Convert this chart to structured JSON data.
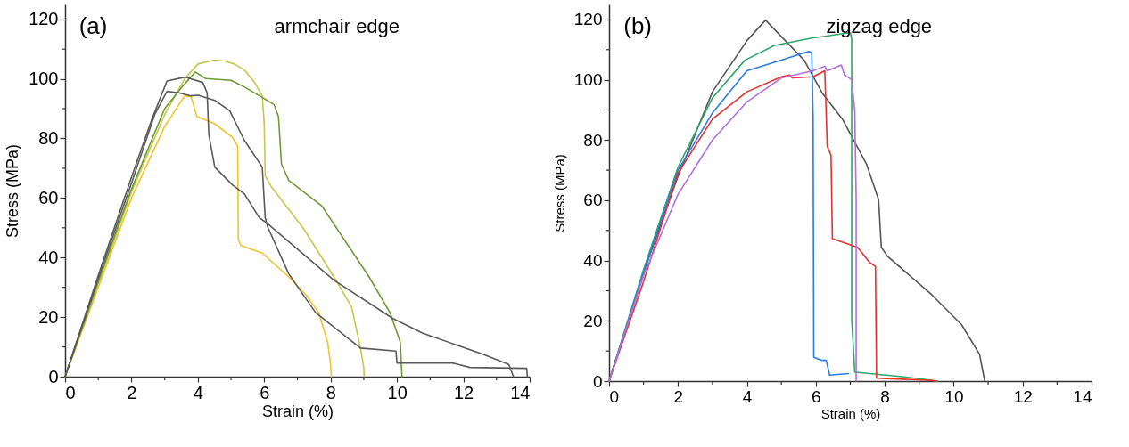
{
  "chart_data": [
    {
      "type": "line",
      "xlabel": "Strain (%)",
      "ylabel": "Stress (MPa)",
      "annotations": [
        "(a)",
        "armchair edge"
      ],
      "xlim": [
        0,
        14
      ],
      "ylim": [
        0,
        125
      ],
      "xticks": [
        0,
        {
          "value": 1,
          "label": null
        },
        2,
        {
          "value": 3,
          "label": null
        },
        4,
        {
          "value": 5,
          "label": null
        },
        6,
        {
          "value": 7,
          "label": null
        },
        8,
        {
          "value": 9,
          "label": null
        },
        10,
        {
          "value": 11,
          "label": null
        },
        12,
        {
          "value": 13,
          "label": null
        },
        14
      ],
      "yticks": [
        0,
        {
          "value": 10,
          "label": null
        },
        20,
        {
          "value": 30,
          "label": null
        },
        40,
        {
          "value": 50,
          "label": null
        },
        60,
        {
          "value": 70,
          "label": null
        },
        80,
        {
          "value": 90,
          "label": null
        },
        100,
        {
          "value": 110,
          "label": null
        },
        120
      ],
      "grid": false,
      "legend": false,
      "marker": "none",
      "line_style": "solid",
      "series": [
        {
          "color": "#f2c42a",
          "x": [
            0,
            1,
            2,
            3,
            3.6,
            3.8,
            3.97,
            4.5,
            5.04,
            5.2,
            5.22,
            5.3,
            5.94,
            6.74,
            7.3,
            7.64,
            7.91,
            8.0,
            8.02
          ],
          "values": [
            0,
            30,
            60,
            84,
            94.3,
            94,
            87.3,
            85,
            80.4,
            77.4,
            46,
            44,
            41.5,
            33.5,
            27,
            21.5,
            11.6,
            4,
            0
          ]
        },
        {
          "color": "#c3c94a",
          "x": [
            0,
            1,
            2,
            3,
            3.6,
            4.0,
            4.5,
            4.8,
            5.1,
            5.4,
            5.7,
            5.94,
            6.0,
            6.03,
            6.2,
            7.2,
            8.1,
            8.63,
            8.9,
            9.0,
            9.01
          ],
          "values": [
            0,
            31,
            62,
            88,
            100,
            105,
            106.3,
            106,
            105,
            103,
            99,
            94.3,
            85,
            67.5,
            64,
            49.5,
            33.5,
            23.5,
            9.6,
            3,
            0
          ]
        },
        {
          "color": "#6e9a35",
          "x": [
            0,
            1,
            2,
            3,
            3.5,
            3.92,
            4.24,
            5.0,
            5.4,
            5.94,
            6.3,
            6.43,
            6.52,
            6.74,
            7.73,
            9.16,
            9.79,
            10.1,
            10.15
          ],
          "values": [
            0,
            32,
            63,
            90,
            97,
            102.3,
            100.1,
            99.5,
            97.3,
            93.8,
            91.3,
            87.3,
            71.4,
            65.9,
            57.4,
            33.5,
            21.5,
            11.6,
            0
          ]
        },
        {
          "color": "#5a5a5a",
          "x": [
            0,
            1,
            2,
            2.6,
            3.07,
            3.61,
            4.15,
            4.28,
            4.33,
            4.51,
            5.04,
            5.4,
            5.85,
            6.1,
            8.09,
            9.88,
            10.78,
            12.57,
            13.37,
            13.51
          ],
          "values": [
            0,
            34,
            67,
            86,
            99.3,
            100.6,
            98.8,
            95.3,
            81.4,
            70.4,
            64.4,
            61.4,
            53.4,
            51.4,
            32.5,
            19.5,
            14.6,
            7.6,
            4.1,
            0
          ]
        },
        {
          "color": "#5a5a5a",
          "x": [
            0,
            1,
            2,
            2.7,
            3.07,
            3.43,
            3.79,
            4.01,
            4.51,
            4.96,
            5.4,
            5.94,
            6.03,
            6.1,
            6.74,
            7.55,
            8.9,
            9.97,
            10.0,
            11.67,
            12.2,
            13.91,
            13.93
          ],
          "values": [
            0,
            33,
            65,
            88,
            95.8,
            95.3,
            94.3,
            94.5,
            92.8,
            89.3,
            79.4,
            70.4,
            53.4,
            50.4,
            34.5,
            21.5,
            9.6,
            8.6,
            4.6,
            4.6,
            3.1,
            2.8,
            0
          ]
        }
      ]
    },
    {
      "type": "line",
      "xlabel": "Strain (%)",
      "ylabel": "Stress (MPa)",
      "annotations": [
        "(b)",
        "zigzag edge"
      ],
      "xlim": [
        0,
        14
      ],
      "ylim": [
        0,
        125
      ],
      "xticks": [
        0,
        {
          "value": 1,
          "label": null
        },
        2,
        {
          "value": 3,
          "label": null
        },
        4,
        {
          "value": 5,
          "label": null
        },
        6,
        {
          "value": 7,
          "label": null
        },
        8,
        {
          "value": 9,
          "label": null
        },
        10,
        {
          "value": 11,
          "label": null
        },
        12,
        {
          "value": 13,
          "label": null
        },
        14
      ],
      "yticks": [
        0,
        {
          "value": 10,
          "label": null
        },
        20,
        {
          "value": 30,
          "label": null
        },
        40,
        {
          "value": 50,
          "label": null
        },
        60,
        {
          "value": 70,
          "label": null
        },
        80,
        {
          "value": 90,
          "label": null
        },
        100,
        {
          "value": 110,
          "label": null
        },
        120
      ],
      "grid": false,
      "legend": false,
      "marker": "none",
      "line_style": "solid",
      "series": [
        {
          "color": "#555555",
          "x": [
            0,
            1,
            2,
            3,
            4,
            4.54,
            5.66,
            6.18,
            6.78,
            7.47,
            7.82,
            7.9,
            8.08,
            9.37,
            10.23,
            10.75,
            10.9
          ],
          "values": [
            0,
            36,
            68,
            96,
            113,
            119.8,
            106.5,
            95.7,
            86.8,
            72,
            60.2,
            44.4,
            41.4,
            28.6,
            18.7,
            8.9,
            0
          ]
        },
        {
          "color": "#2ea86a",
          "x": [
            0,
            1,
            2,
            3,
            3.94,
            4.8,
            5.92,
            6.18,
            7.0,
            7.04,
            7.04,
            7.13,
            7.3,
            8.5,
            9.54
          ],
          "values": [
            0,
            37,
            71,
            94,
            106.5,
            111.4,
            113.9,
            114.3,
            115.7,
            113.4,
            20.7,
            3,
            2.8,
            1.5,
            0
          ]
        },
        {
          "color": "#2a7de1",
          "x": [
            0,
            1,
            2,
            3,
            4,
            5,
            5.79,
            5.88,
            5.92,
            5.94,
            6.18,
            6.3,
            6.4,
            6.95
          ],
          "values": [
            0,
            36,
            70,
            89,
            103,
            106.5,
            109.4,
            109,
            87.8,
            7.9,
            6.9,
            6.9,
            2,
            2.5
          ]
        },
        {
          "color": "#e83030",
          "x": [
            0,
            1,
            2,
            3,
            4,
            5,
            5.23,
            5.32,
            5.92,
            6.26,
            6.33,
            6.44,
            6.48,
            7.21,
            7.56,
            7.73,
            7.76,
            9.37,
            9.5
          ],
          "values": [
            0,
            33,
            69,
            87,
            96,
            101,
            101.6,
            100.6,
            101,
            103,
            77.9,
            75,
            47.3,
            44.4,
            39.4,
            38,
            1,
            0.2,
            0
          ]
        },
        {
          "color": "#b070e0",
          "x": [
            0,
            1,
            2,
            3,
            4,
            5,
            5.92,
            6.26,
            6.33,
            6.74,
            6.83,
            7.04,
            7.13,
            7.17,
            7.17
          ],
          "values": [
            0,
            35,
            62,
            80,
            92.7,
            100.6,
            103,
            104.5,
            103,
            104.9,
            101.6,
            100,
            89.7,
            60.2,
            0
          ]
        }
      ]
    }
  ]
}
